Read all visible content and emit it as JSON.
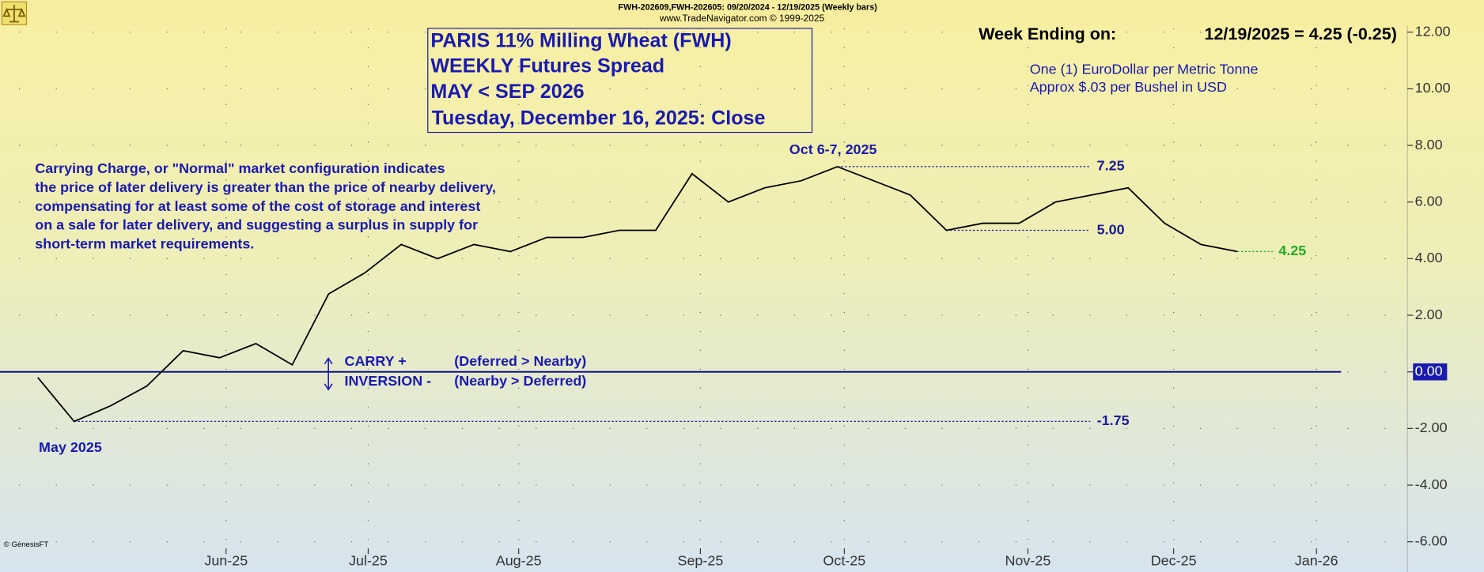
{
  "chart_data": {
    "type": "line",
    "header": [
      "FWH-202609,FWH-202605:  09/20/2024 - 12/19/2025  (Weekly bars)",
      "www.TradeNavigator.com © 1999-2025"
    ],
    "title": [
      "PARIS 11% Milling Wheat (FWH)",
      "WEEKLY Futures Spread",
      "MAY < SEP 2026",
      "Tuesday, December 16, 2025: Close"
    ],
    "week_ending_label": "Week Ending on:",
    "week_ending_value": "12/19/2025 = 4.25 (-0.25)",
    "units_note": [
      "One (1) EuroDollar per Metric Tonne",
      "Approx $.03 per Bushel in USD"
    ],
    "description": [
      "Carrying Charge, or \"Normal\" market configuration indicates",
      "the price of later delivery is greater than the price of nearby delivery,",
      "compensating for at least some of the cost of storage and interest",
      "on a sale for later delivery, and suggesting a surplus in supply for",
      "short-term market requirements."
    ],
    "carry_labels": [
      "CARRY +",
      "INVERSION -"
    ],
    "carry_notes": [
      "(Deferred > Nearby)",
      "(Nearby > Deferred)"
    ],
    "annotations": [
      "Oct 6-7, 2025",
      "May 2025"
    ],
    "credit": "© GenesisFT",
    "x": [
      0,
      1,
      2,
      3,
      4,
      5,
      6,
      7,
      8,
      9,
      10,
      11,
      12,
      13,
      14,
      15,
      16,
      17,
      18,
      19,
      20,
      21,
      22,
      23,
      24,
      25,
      26,
      27,
      28,
      29,
      30,
      31,
      32,
      33
    ],
    "series": [
      {
        "name": "FWH May<Sep 2026",
        "color": "#000000",
        "values": [
          -0.2,
          -1.75,
          -1.2,
          -0.5,
          0.75,
          0.5,
          1.0,
          0.25,
          2.75,
          3.5,
          4.5,
          4.0,
          4.5,
          4.25,
          4.75,
          4.75,
          5.0,
          5.0,
          7.0,
          6.0,
          6.5,
          6.75,
          7.25,
          6.75,
          6.25,
          5.0,
          5.25,
          5.25,
          6.0,
          6.25,
          6.5,
          5.25,
          4.5,
          4.25
        ]
      }
    ],
    "xlim": [
      -1.04,
      37.68
    ],
    "xticks": [
      {
        "value": 5.18,
        "label": "Jun-25"
      },
      {
        "value": 9.09,
        "label": "Jul-25"
      },
      {
        "value": 13.23,
        "label": "Aug-25"
      },
      {
        "value": 18.23,
        "label": "Sep-25"
      },
      {
        "value": 22.19,
        "label": "Oct-25"
      },
      {
        "value": 27.24,
        "label": "Nov-25"
      },
      {
        "value": 31.25,
        "label": "Dec-25"
      },
      {
        "value": 35.18,
        "label": "Jan-26"
      }
    ],
    "ylim": [
      -6,
      12
    ],
    "yticks": [
      {
        "value": -6,
        "label": "-6.00"
      },
      {
        "value": -4,
        "label": "-4.00"
      },
      {
        "value": -2,
        "label": "-2.00"
      },
      {
        "value": 0,
        "label": "0.00"
      },
      {
        "value": 2,
        "label": "2.00"
      },
      {
        "value": 4,
        "label": "4.00"
      },
      {
        "value": 6,
        "label": "6.00"
      },
      {
        "value": 8,
        "label": "8.00"
      },
      {
        "value": 10,
        "label": "10.00"
      },
      {
        "value": 12,
        "label": "12.00"
      }
    ],
    "zero_line_color": "#000080",
    "reference_lines": [
      {
        "value": 7.25,
        "label": "7.25",
        "color": "#1a1a9a"
      },
      {
        "value": 5.0,
        "label": "5.00",
        "color": "#1a1a9a"
      },
      {
        "value": -1.75,
        "label": "-1.75",
        "color": "#1a1a9a"
      },
      {
        "value": 4.25,
        "label": "4.25",
        "color": "#22aa22"
      }
    ],
    "grid": true
  }
}
